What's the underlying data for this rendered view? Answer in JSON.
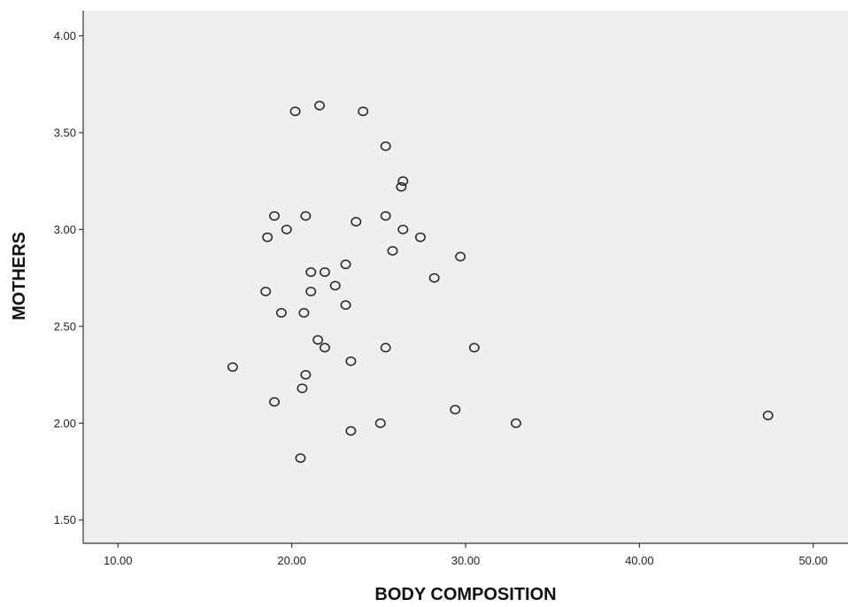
{
  "chart_data": {
    "type": "scatter",
    "xlabel": "BODY COMPOSITION",
    "ylabel": "MOTHERS",
    "xlim": [
      8.0,
      52.0
    ],
    "ylim": [
      1.38,
      4.13
    ],
    "x_ticks": [
      10,
      20,
      30,
      40,
      50
    ],
    "x_tick_labels": [
      "10.00",
      "20.00",
      "30.00",
      "40.00",
      "50.00"
    ],
    "y_ticks": [
      1.5,
      2.0,
      2.5,
      3.0,
      3.5,
      4.0
    ],
    "y_tick_labels": [
      "1.50",
      "2.00",
      "2.50",
      "3.00",
      "3.50",
      "4.00"
    ],
    "grid": false,
    "legend": false,
    "colors": {
      "plot_background": "#efefef",
      "marker_stroke": "#222222",
      "axis": "#333333"
    },
    "series": [
      {
        "points": [
          [
            20.2,
            3.61
          ],
          [
            21.6,
            3.64
          ],
          [
            24.1,
            3.61
          ],
          [
            25.4,
            3.43
          ],
          [
            26.4,
            3.25
          ],
          [
            26.3,
            3.22
          ],
          [
            19.0,
            3.07
          ],
          [
            20.8,
            3.07
          ],
          [
            25.4,
            3.07
          ],
          [
            23.7,
            3.04
          ],
          [
            19.7,
            3.0
          ],
          [
            26.4,
            3.0
          ],
          [
            18.6,
            2.96
          ],
          [
            27.4,
            2.96
          ],
          [
            25.8,
            2.89
          ],
          [
            29.7,
            2.86
          ],
          [
            23.1,
            2.82
          ],
          [
            21.1,
            2.78
          ],
          [
            21.9,
            2.78
          ],
          [
            28.2,
            2.75
          ],
          [
            22.5,
            2.71
          ],
          [
            18.5,
            2.68
          ],
          [
            21.1,
            2.68
          ],
          [
            23.1,
            2.61
          ],
          [
            19.4,
            2.57
          ],
          [
            20.7,
            2.57
          ],
          [
            21.5,
            2.43
          ],
          [
            21.9,
            2.39
          ],
          [
            25.4,
            2.39
          ],
          [
            30.5,
            2.39
          ],
          [
            23.4,
            2.32
          ],
          [
            16.6,
            2.29
          ],
          [
            20.8,
            2.25
          ],
          [
            20.6,
            2.18
          ],
          [
            19.0,
            2.11
          ],
          [
            29.4,
            2.07
          ],
          [
            47.4,
            2.04
          ],
          [
            25.1,
            2.0
          ],
          [
            32.9,
            2.0
          ],
          [
            23.4,
            1.96
          ],
          [
            20.5,
            1.82
          ]
        ]
      }
    ]
  }
}
